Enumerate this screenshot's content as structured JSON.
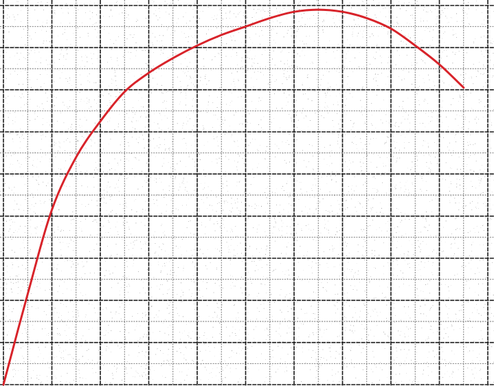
{
  "chart_data": {
    "type": "line",
    "title": "",
    "xlabel": "",
    "ylabel": "",
    "xlim": [
      0,
      10
    ],
    "ylim": [
      0,
      9
    ],
    "grid": true,
    "grid_minor_per_major": 2,
    "background": "graph paper",
    "series": [
      {
        "color": "#d8232a",
        "x": [
          0,
          0.5,
          1,
          1.5,
          2,
          2.5,
          3,
          3.5,
          4,
          4.5,
          5,
          5.5,
          6,
          6.5,
          7,
          7.5,
          8,
          8.5,
          9,
          9.5
        ],
        "y": [
          0,
          2.15,
          4.15,
          5.4,
          6.25,
          6.95,
          7.4,
          7.75,
          8.05,
          8.3,
          8.5,
          8.7,
          8.85,
          8.9,
          8.85,
          8.7,
          8.45,
          8.05,
          7.6,
          7.05
        ]
      }
    ]
  },
  "colors": {
    "grid_major": "#1a1a1a",
    "grid_minor": "#6a6a6a",
    "paper": "#ffffff",
    "speckle": "#222222"
  }
}
